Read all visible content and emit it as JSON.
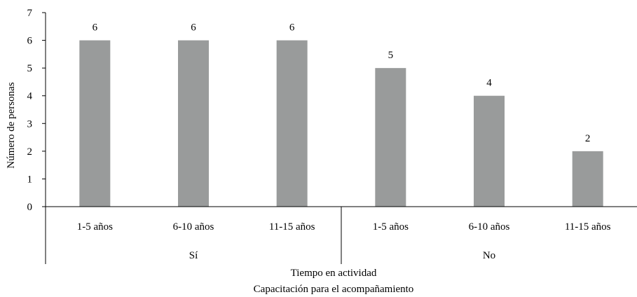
{
  "chart_data": {
    "type": "bar",
    "ylabel": "Número de personas",
    "xlabel_lines": [
      "Tiempo en actividad",
      "Capacitación para el acompañamiento"
    ],
    "ylim": [
      0,
      7
    ],
    "yticks": [
      "0",
      "1",
      "2",
      "3",
      "4",
      "5",
      "6",
      "7"
    ],
    "grid": false,
    "legend": "none",
    "groups": [
      {
        "label": "Sí",
        "categories": [
          "1-5 años",
          "6-10 años",
          "11-15 años"
        ],
        "values": [
          6,
          6,
          6
        ]
      },
      {
        "label": "No",
        "categories": [
          "1-5 años",
          "6-10 años",
          "11-15 años"
        ],
        "values": [
          5,
          4,
          2
        ]
      }
    ],
    "bar_color": "#999b9b",
    "data_labels": true
  }
}
